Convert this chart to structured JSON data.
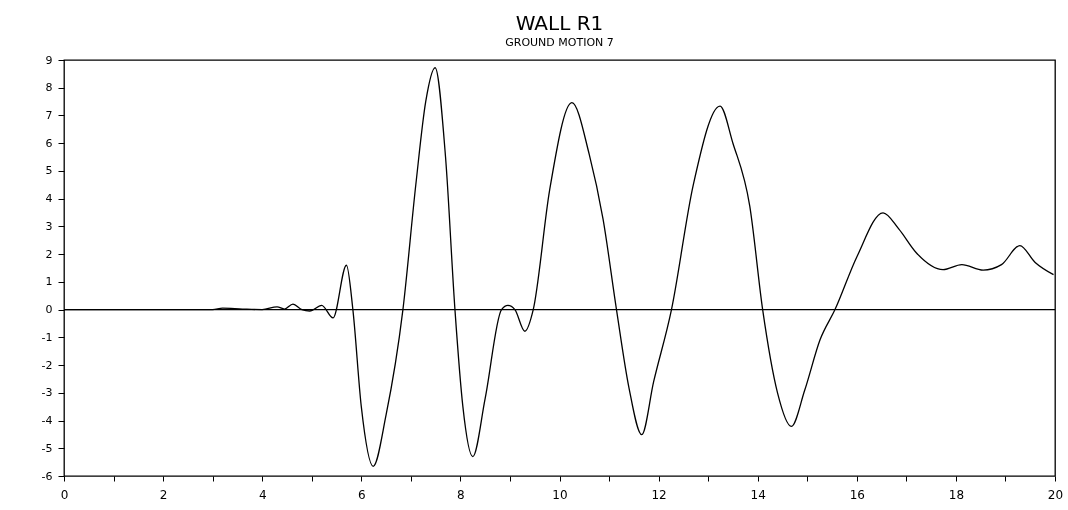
{
  "chart_data": {
    "type": "line",
    "title": "WALL R1",
    "subtitle": "GROUND MOTION 7",
    "x": [
      0,
      1,
      2,
      3,
      3.2,
      3.6,
      4,
      4.3,
      4.45,
      4.62,
      4.8,
      4.96,
      5.2,
      5.43,
      5.7,
      5.83,
      6.0,
      6.24,
      6.5,
      6.84,
      7.1,
      7.3,
      7.49,
      7.7,
      7.89,
      8.05,
      8.25,
      8.5,
      8.83,
      8.96,
      9.1,
      9.3,
      9.47,
      9.8,
      10.25,
      10.6,
      10.88,
      11.15,
      11.4,
      11.66,
      11.9,
      12.26,
      12.7,
      13.24,
      13.5,
      13.84,
      14.1,
      14.4,
      14.68,
      14.95,
      15.26,
      15.56,
      16.0,
      16.53,
      16.85,
      17.2,
      17.74,
      18.12,
      18.55,
      18.92,
      19.29,
      19.6,
      19.97
    ],
    "series": [
      {
        "color": "#000000",
        "values": [
          0,
          0,
          0,
          0,
          0.05,
          0.02,
          0,
          0.1,
          0.02,
          0.2,
          0,
          -0.05,
          0.15,
          -0.3,
          1.6,
          0,
          -3.5,
          -5.65,
          -3.8,
          0,
          4.5,
          7.5,
          8.72,
          5.5,
          0,
          -3.5,
          -5.3,
          -3.2,
          0,
          0.15,
          0,
          -0.78,
          0,
          4.3,
          7.46,
          5.6,
          3.25,
          0,
          -2.8,
          -4.51,
          -2.6,
          0,
          4.5,
          7.34,
          6.0,
          3.73,
          0,
          -3,
          -4.21,
          -2.9,
          -1.08,
          0,
          1.9,
          3.49,
          2.9,
          2.05,
          1.44,
          1.62,
          1.42,
          1.62,
          2.31,
          1.7,
          1.26
        ]
      }
    ],
    "xlim": [
      0,
      20
    ],
    "ylim": [
      -6,
      9
    ],
    "xticks": [
      0,
      {
        "value": 1,
        "label": null
      },
      2,
      {
        "value": 3,
        "label": null
      },
      4,
      {
        "value": 5,
        "label": null
      },
      6,
      {
        "value": 7,
        "label": null
      },
      8,
      {
        "value": 9,
        "label": null
      },
      10,
      {
        "value": 11,
        "label": null
      },
      12,
      {
        "value": 13,
        "label": null
      },
      14,
      {
        "value": 15,
        "label": null
      },
      16,
      {
        "value": 17,
        "label": null
      },
      18,
      {
        "value": 19,
        "label": null
      },
      20
    ],
    "yticks": [
      -6,
      -5,
      -4,
      -3,
      -2,
      -1,
      0,
      1,
      2,
      3,
      4,
      5,
      6,
      7,
      8,
      9
    ],
    "ref_lines": [
      {
        "axis": "y",
        "value": 0,
        "color": "#000000"
      }
    ],
    "grid": false,
    "marker": "none",
    "line_style": "solid"
  }
}
